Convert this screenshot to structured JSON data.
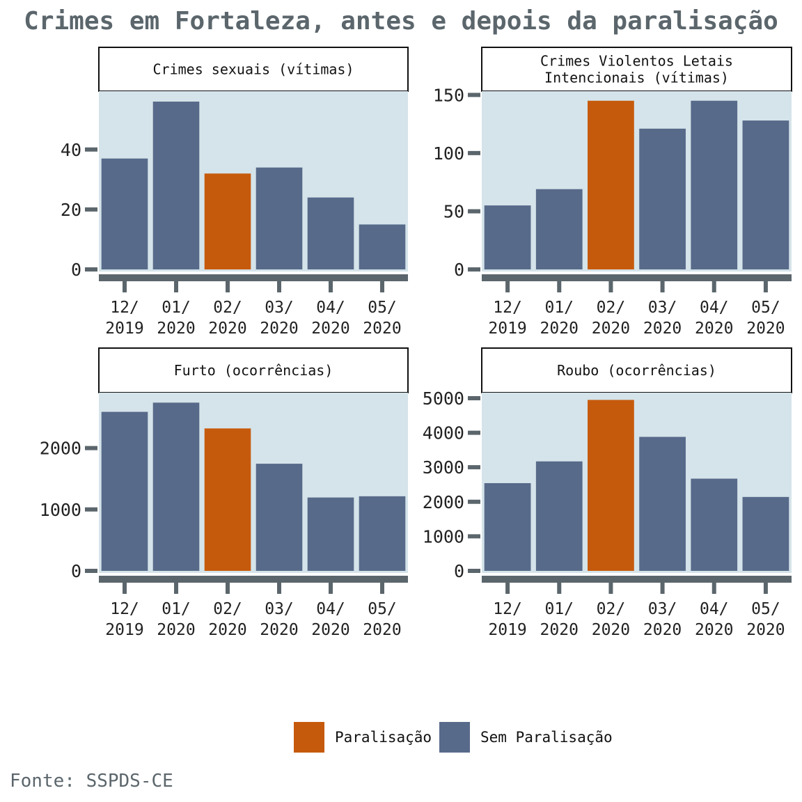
{
  "title": "Crimes em Fortaleza, antes e depois da paralisação",
  "source": "Fonte: SSPDS-CE",
  "colors": {
    "paralisacao": "#c65a0c",
    "sem_paralisacao": "#586a8a",
    "panel_background": "#d5e4ea",
    "axis": "#5b666c",
    "title_text": "#5b666c",
    "label_text": "#222222"
  },
  "legend": {
    "items": [
      {
        "label": "Paralisação",
        "color": "#c65a0c"
      },
      {
        "label": "Sem Paralisação",
        "color": "#586a8a"
      }
    ]
  },
  "chart_data": [
    {
      "type": "bar",
      "title": [
        "Crimes sexuais (vítimas)"
      ],
      "categories": [
        [
          "12/",
          "2019"
        ],
        [
          "01/",
          "2020"
        ],
        [
          "02/",
          "2020"
        ],
        [
          "03/",
          "2020"
        ],
        [
          "04/",
          "2020"
        ],
        [
          "05/",
          "2020"
        ]
      ],
      "values": [
        37,
        56,
        32,
        34,
        24,
        15
      ],
      "highlight": [
        false,
        false,
        true,
        false,
        false,
        false
      ],
      "yticks": [
        0,
        20,
        40
      ],
      "ylim": [
        0,
        59
      ]
    },
    {
      "type": "bar",
      "title": [
        "Crimes Violentos Letais",
        "Intencionais (vítimas)"
      ],
      "categories": [
        [
          "12/",
          "2019"
        ],
        [
          "01/",
          "2020"
        ],
        [
          "02/",
          "2020"
        ],
        [
          "03/",
          "2020"
        ],
        [
          "04/",
          "2020"
        ],
        [
          "05/",
          "2020"
        ]
      ],
      "values": [
        55,
        69,
        145,
        121,
        145,
        128
      ],
      "highlight": [
        false,
        false,
        true,
        false,
        false,
        false
      ],
      "yticks": [
        0,
        50,
        100,
        150
      ],
      "ylim": [
        0,
        152
      ]
    },
    {
      "type": "bar",
      "title": [
        "Furto (ocorrências)"
      ],
      "categories": [
        [
          "12/",
          "2019"
        ],
        [
          "01/",
          "2020"
        ],
        [
          "02/",
          "2020"
        ],
        [
          "03/",
          "2020"
        ],
        [
          "04/",
          "2020"
        ],
        [
          "05/",
          "2020"
        ]
      ],
      "values": [
        2590,
        2740,
        2320,
        1745,
        1195,
        1215
      ],
      "highlight": [
        false,
        false,
        true,
        false,
        false,
        false
      ],
      "yticks": [
        0,
        1000,
        2000
      ],
      "ylim": [
        0,
        2880
      ]
    },
    {
      "type": "bar",
      "title": [
        "Roubo (ocorrências)"
      ],
      "categories": [
        [
          "12/",
          "2019"
        ],
        [
          "01/",
          "2020"
        ],
        [
          "02/",
          "2020"
        ],
        [
          "03/",
          "2020"
        ],
        [
          "04/",
          "2020"
        ],
        [
          "05/",
          "2020"
        ]
      ],
      "values": [
        2540,
        3170,
        4950,
        3880,
        2670,
        2140
      ],
      "highlight": [
        false,
        false,
        true,
        false,
        false,
        false
      ],
      "yticks": [
        0,
        1000,
        2000,
        3000,
        4000,
        5000
      ],
      "ylim": [
        0,
        5120
      ]
    }
  ]
}
